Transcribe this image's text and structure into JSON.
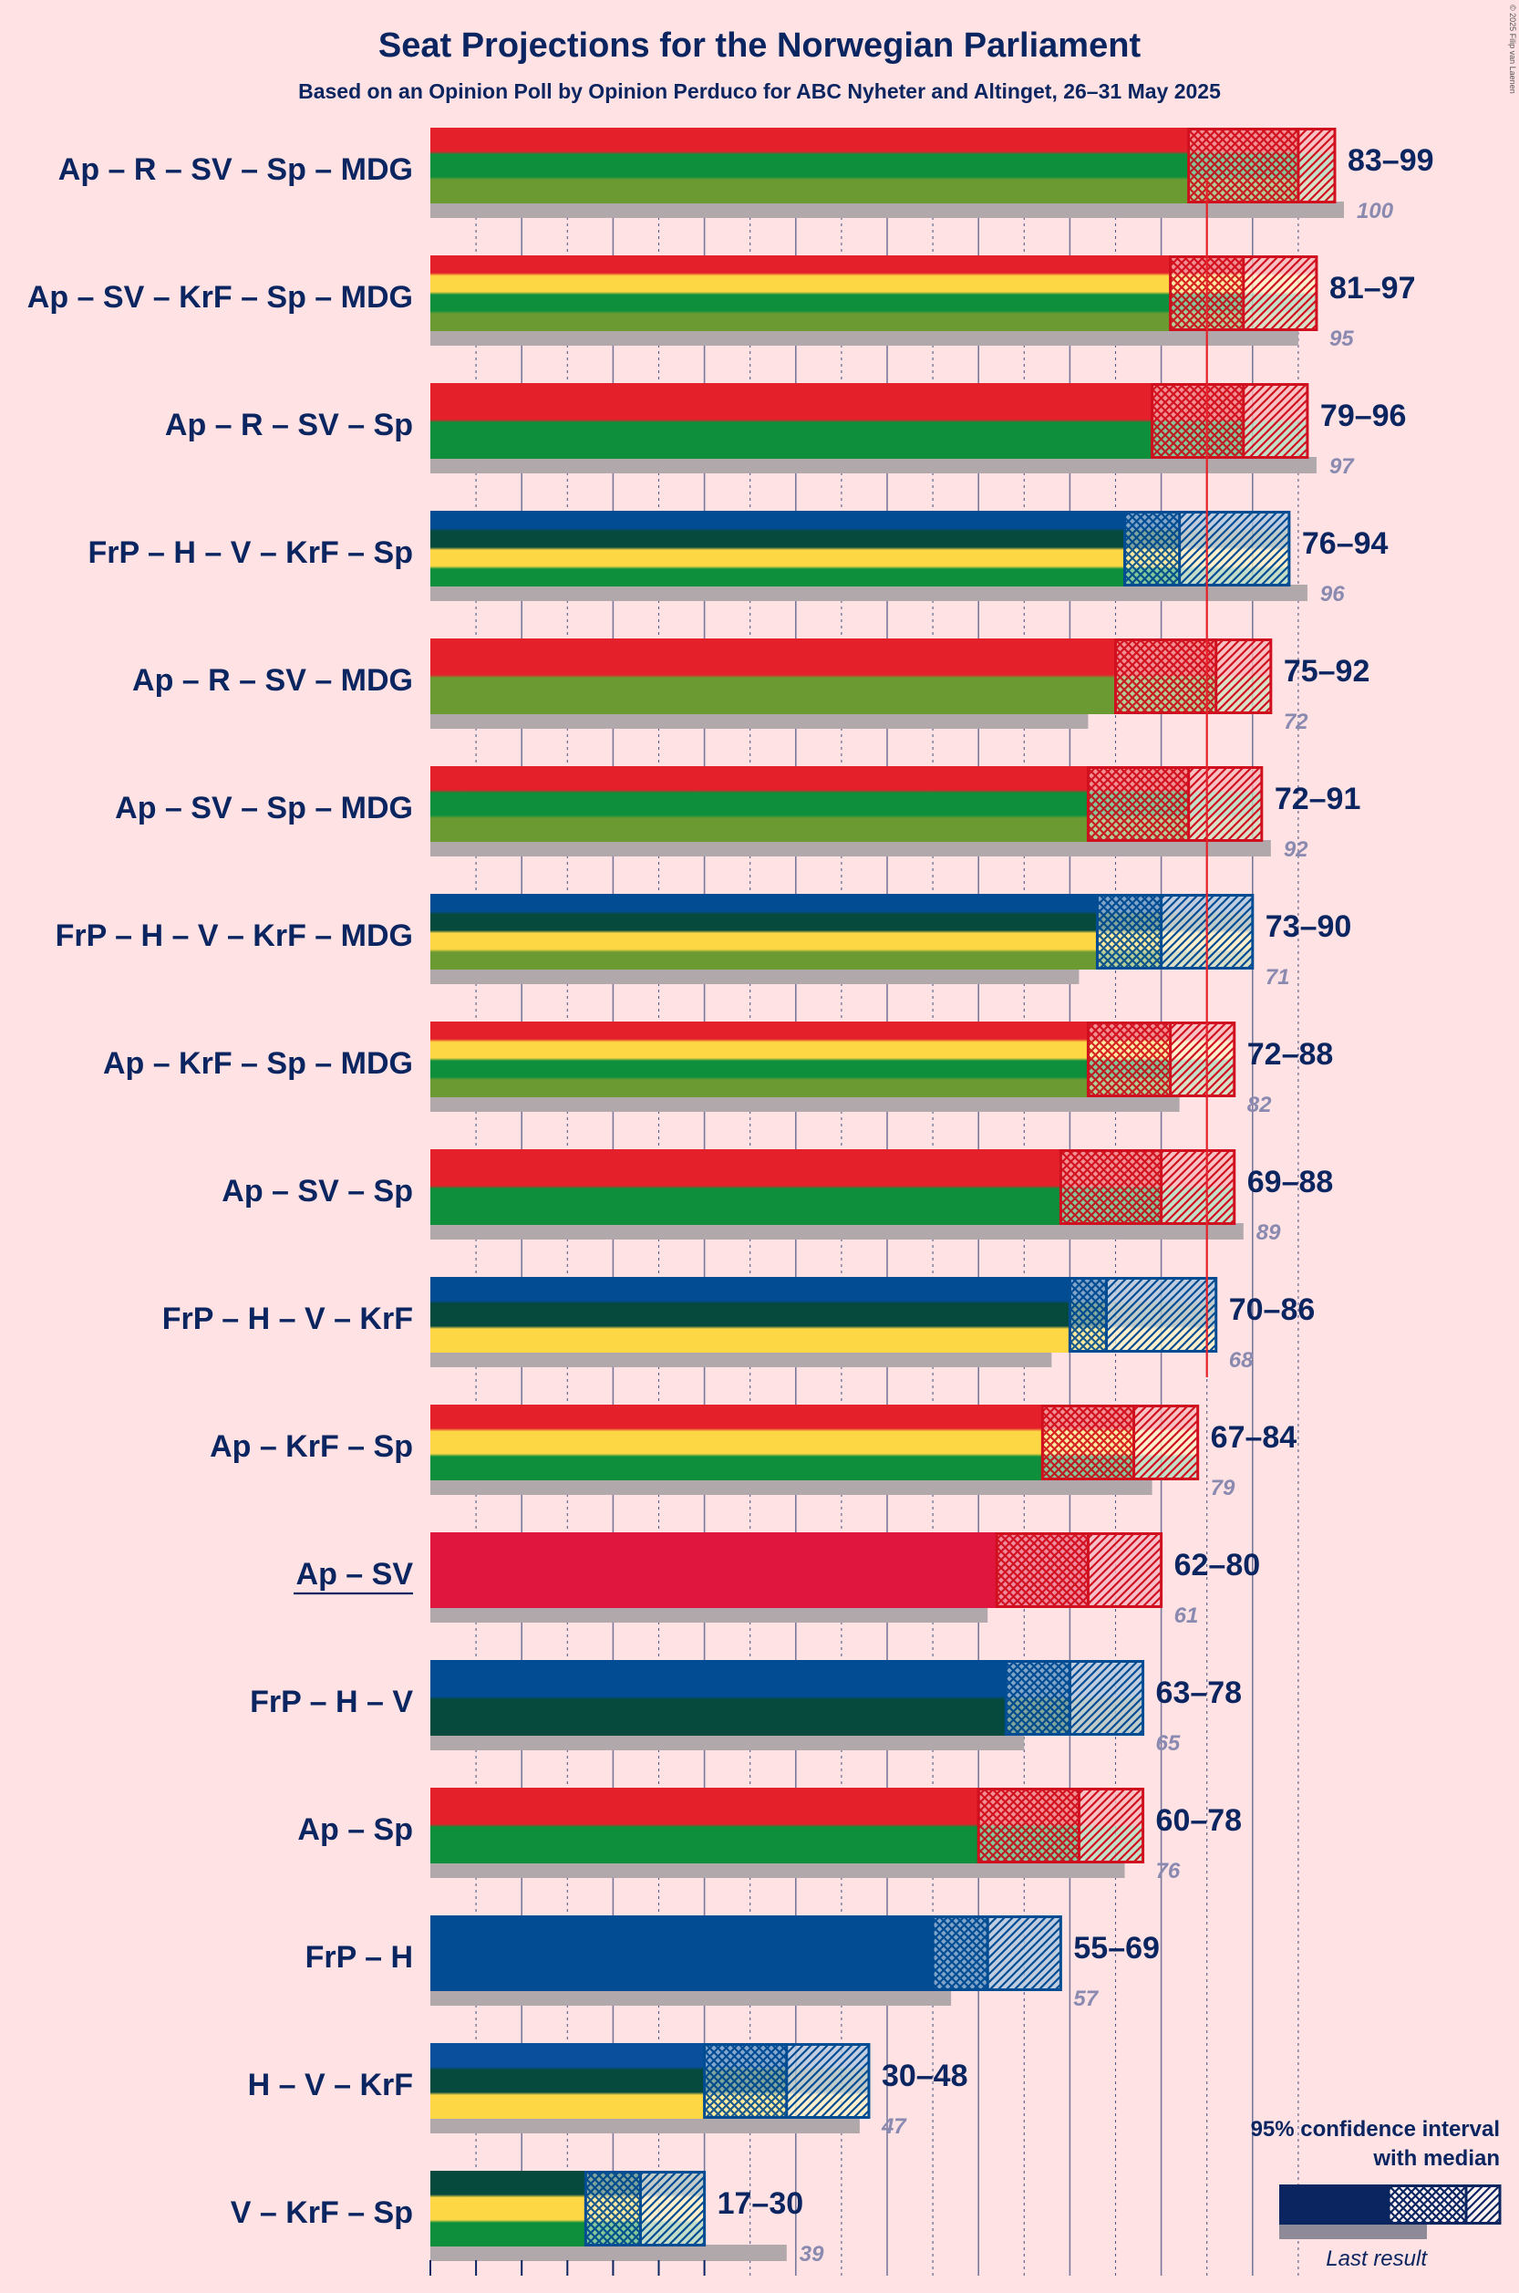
{
  "chart_data": {
    "type": "bar",
    "title": "Seat Projections for the Norwegian Parliament",
    "subtitle": "Based on an Opinion Poll by Opinion Perduco for ABC Nyheter and Altinget, 26–31 May 2025",
    "copyright": "© 2025 Filip van Laenen",
    "majority": 85,
    "x_range": [
      0,
      100
    ],
    "colors": {
      "Ap": "#e4202a",
      "R": "#b5121b",
      "SV": "#e0163e",
      "Sp": "#0d8f3b",
      "MDG": "#6b9a32",
      "KrF": "#fdd744",
      "FrP": "#024c93",
      "H": "#0a4f9c",
      "V": "#064a3e",
      "last": "#b0a8aa",
      "text": "#0b2561",
      "muted": "#8a8ab0"
    },
    "coalitions": [
      {
        "label": "Ap – R – SV – Sp – MDG",
        "parties": [
          "Ap",
          "Sp",
          "MDG"
        ],
        "lower": 83,
        "median": 95,
        "upper": 99,
        "last": 100,
        "range_text": "83–99",
        "last_text": "100",
        "underline": false
      },
      {
        "label": "Ap – SV – KrF – Sp – MDG",
        "parties": [
          "Ap",
          "KrF",
          "Sp",
          "MDG"
        ],
        "lower": 81,
        "median": 89,
        "upper": 97,
        "last": 95,
        "range_text": "81–97",
        "last_text": "95",
        "underline": false
      },
      {
        "label": "Ap – R – SV – Sp",
        "parties": [
          "Ap",
          "Sp"
        ],
        "lower": 79,
        "median": 89,
        "upper": 96,
        "last": 97,
        "range_text": "79–96",
        "last_text": "97",
        "underline": false
      },
      {
        "label": "FrP – H – V – KrF – Sp",
        "parties": [
          "FrP",
          "V",
          "KrF",
          "Sp"
        ],
        "lower": 76,
        "median": 82,
        "upper": 94,
        "last": 96,
        "range_text": "76–94",
        "last_text": "96",
        "underline": false
      },
      {
        "label": "Ap – R – SV – MDG",
        "parties": [
          "Ap",
          "MDG"
        ],
        "lower": 75,
        "median": 86,
        "upper": 92,
        "last": 72,
        "range_text": "75–92",
        "last_text": "72",
        "underline": false
      },
      {
        "label": "Ap – SV – Sp – MDG",
        "parties": [
          "Ap",
          "Sp",
          "MDG"
        ],
        "lower": 72,
        "median": 83,
        "upper": 91,
        "last": 92,
        "range_text": "72–91",
        "last_text": "92",
        "underline": false
      },
      {
        "label": "FrP – H – V – KrF – MDG",
        "parties": [
          "FrP",
          "V",
          "KrF",
          "MDG"
        ],
        "lower": 73,
        "median": 80,
        "upper": 90,
        "last": 71,
        "range_text": "73–90",
        "last_text": "71",
        "underline": false
      },
      {
        "label": "Ap – KrF – Sp – MDG",
        "parties": [
          "Ap",
          "KrF",
          "Sp",
          "MDG"
        ],
        "lower": 72,
        "median": 81,
        "upper": 88,
        "last": 82,
        "range_text": "72–88",
        "last_text": "82",
        "underline": false
      },
      {
        "label": "Ap – SV – Sp",
        "parties": [
          "Ap",
          "Sp"
        ],
        "lower": 69,
        "median": 80,
        "upper": 88,
        "last": 89,
        "range_text": "69–88",
        "last_text": "89",
        "underline": false
      },
      {
        "label": "FrP – H – V – KrF",
        "parties": [
          "FrP",
          "V",
          "KrF"
        ],
        "lower": 70,
        "median": 74,
        "upper": 86,
        "last": 68,
        "range_text": "70–86",
        "last_text": "68",
        "underline": false
      },
      {
        "label": "Ap – KrF – Sp",
        "parties": [
          "Ap",
          "KrF",
          "Sp"
        ],
        "lower": 67,
        "median": 77,
        "upper": 84,
        "last": 79,
        "range_text": "67–84",
        "last_text": "79",
        "underline": false
      },
      {
        "label": "Ap – SV",
        "parties": [
          "SV"
        ],
        "lower": 62,
        "median": 72,
        "upper": 80,
        "last": 61,
        "range_text": "62–80",
        "last_text": "61",
        "underline": true
      },
      {
        "label": "FrP – H – V",
        "parties": [
          "FrP",
          "V"
        ],
        "lower": 63,
        "median": 70,
        "upper": 78,
        "last": 65,
        "range_text": "63–78",
        "last_text": "65",
        "underline": false
      },
      {
        "label": "Ap – Sp",
        "parties": [
          "Ap",
          "Sp"
        ],
        "lower": 60,
        "median": 71,
        "upper": 78,
        "last": 76,
        "range_text": "60–78",
        "last_text": "76",
        "underline": false
      },
      {
        "label": "FrP – H",
        "parties": [
          "FrP"
        ],
        "lower": 55,
        "median": 61,
        "upper": 69,
        "last": 57,
        "range_text": "55–69",
        "last_text": "57",
        "underline": false
      },
      {
        "label": "H – V – KrF",
        "parties": [
          "H",
          "V",
          "KrF"
        ],
        "lower": 30,
        "median": 39,
        "upper": 48,
        "last": 47,
        "range_text": "30–48",
        "last_text": "47",
        "underline": false
      },
      {
        "label": "V – KrF – Sp",
        "parties": [
          "V",
          "KrF",
          "Sp"
        ],
        "lower": 17,
        "median": 23,
        "upper": 30,
        "last": 39,
        "range_text": "17–30",
        "last_text": "39",
        "underline": false
      }
    ],
    "legend": {
      "title_line1": "95% confidence interval",
      "title_line2": "with median",
      "last_result": "Last result"
    }
  }
}
